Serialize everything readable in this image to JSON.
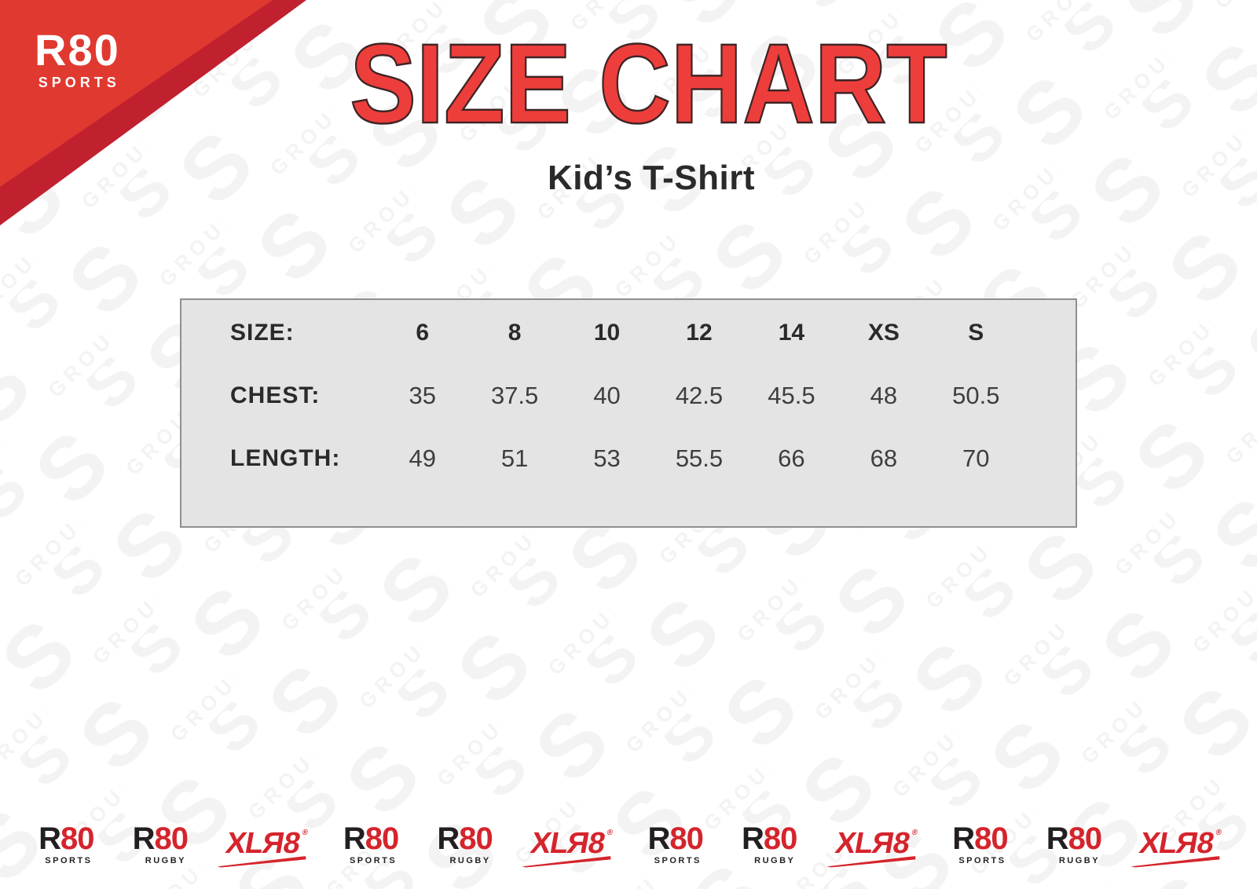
{
  "colors": {
    "red_bright": "#e03930",
    "red_dark": "#c1202f",
    "red_title": "#ee3e3c",
    "red_logo": "#d5242c",
    "ink": "#2b2a2a",
    "logo_ink": "#231f20",
    "table_bg": "#e5e4e4",
    "table_border": "#8f8f8f",
    "watermark": "#f3f3f3"
  },
  "brand": {
    "name": "R80",
    "sub": "SPORTS"
  },
  "title": "SIZE CHART",
  "subtitle": "Kid’s T-Shirt",
  "watermark": {
    "letter": "S",
    "word": "GROUP"
  },
  "size_table": {
    "rows": [
      {
        "label": "SIZE:",
        "values": [
          "6",
          "8",
          "10",
          "12",
          "14",
          "XS",
          "S"
        ]
      },
      {
        "label": "CHEST:",
        "values": [
          "35",
          "37.5",
          "40",
          "42.5",
          "45.5",
          "48",
          "50.5"
        ]
      },
      {
        "label": "LENGTH:",
        "values": [
          "49",
          "51",
          "53",
          "55.5",
          "66",
          "68",
          "70"
        ]
      }
    ]
  },
  "chart_data": {
    "type": "table",
    "title": "SIZE CHART",
    "subtitle": "Kid’s T-Shirt",
    "columns": [
      "SIZE",
      "6",
      "8",
      "10",
      "12",
      "14",
      "XS",
      "S"
    ],
    "rows": [
      [
        "CHEST",
        35,
        37.5,
        40,
        42.5,
        45.5,
        48,
        50.5
      ],
      [
        "LENGTH",
        49,
        51,
        53,
        55.5,
        66,
        68,
        70
      ]
    ]
  },
  "footer": {
    "logos": [
      {
        "id": "r80-sports-1",
        "type": "r80",
        "main_r": "R",
        "main_80": "80",
        "sub": "SPORTS"
      },
      {
        "id": "r80-rugby-1",
        "type": "r80",
        "main_r": "R",
        "main_80": "80",
        "sub": "RUGBY"
      },
      {
        "id": "xlr8-1",
        "type": "xlr8",
        "xl": "XL",
        "r": "R",
        "eight": "8",
        "reg": "®"
      },
      {
        "id": "r80-sports-2",
        "type": "r80",
        "main_r": "R",
        "main_80": "80",
        "sub": "SPORTS"
      },
      {
        "id": "r80-rugby-2",
        "type": "r80",
        "main_r": "R",
        "main_80": "80",
        "sub": "RUGBY"
      },
      {
        "id": "xlr8-2",
        "type": "xlr8",
        "xl": "XL",
        "r": "R",
        "eight": "8",
        "reg": "®"
      },
      {
        "id": "r80-sports-3",
        "type": "r80",
        "main_r": "R",
        "main_80": "80",
        "sub": "SPORTS"
      },
      {
        "id": "r80-rugby-3",
        "type": "r80",
        "main_r": "R",
        "main_80": "80",
        "sub": "RUGBY"
      },
      {
        "id": "xlr8-3",
        "type": "xlr8",
        "xl": "XL",
        "r": "R",
        "eight": "8",
        "reg": "®"
      },
      {
        "id": "r80-sports-4",
        "type": "r80",
        "main_r": "R",
        "main_80": "80",
        "sub": "SPORTS"
      },
      {
        "id": "r80-rugby-4",
        "type": "r80",
        "main_r": "R",
        "main_80": "80",
        "sub": "RUGBY"
      },
      {
        "id": "xlr8-4",
        "type": "xlr8",
        "xl": "XL",
        "r": "R",
        "eight": "8",
        "reg": "®"
      }
    ]
  }
}
